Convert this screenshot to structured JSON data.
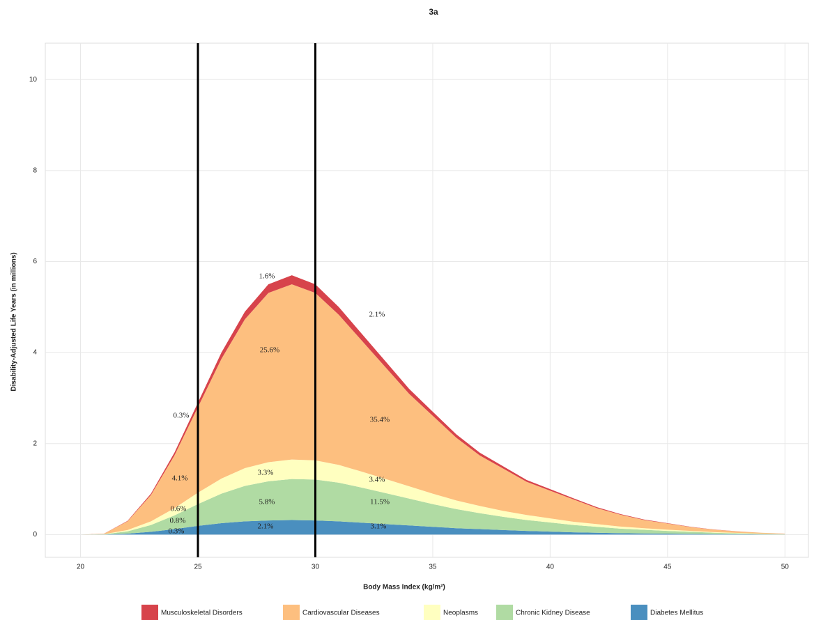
{
  "chart_data": {
    "type": "area",
    "stacked": true,
    "title": "3a",
    "x_label": "Body Mass Index (kg/m²)",
    "y_label": "Disability-Adjusted Life Years (in millions)",
    "x": [
      20,
      21,
      22,
      23,
      24,
      25,
      26,
      27,
      28,
      29,
      30,
      31,
      32,
      33,
      34,
      35,
      36,
      37,
      38,
      39,
      40,
      41,
      42,
      43,
      44,
      45,
      46,
      47,
      48,
      49,
      50
    ],
    "series": [
      {
        "name": "Musculoskeletal Disorders",
        "color": "#d7434b",
        "values": [
          0,
          0.001,
          0.01,
          0.03,
          0.06,
          0.1,
          0.14,
          0.17,
          0.19,
          0.2,
          0.19,
          0.17,
          0.15,
          0.13,
          0.11,
          0.09,
          0.075,
          0.06,
          0.05,
          0.04,
          0.033,
          0.026,
          0.02,
          0.015,
          0.011,
          0.008,
          0.006,
          0.004,
          0.0025,
          0.0015,
          0.0008
        ]
      },
      {
        "name": "Cardiovascular Diseases",
        "color": "#fdbf7f",
        "values": [
          0,
          0.01,
          0.19,
          0.58,
          1.16,
          1.88,
          2.63,
          3.27,
          3.72,
          3.85,
          3.68,
          3.3,
          2.87,
          2.45,
          2.03,
          1.71,
          1.38,
          1.11,
          0.93,
          0.73,
          0.61,
          0.49,
          0.35,
          0.26,
          0.18,
          0.135,
          0.084,
          0.052,
          0.032,
          0.018,
          0.008
        ]
      },
      {
        "name": "Neoplasms",
        "color": "#ffffc0",
        "values": [
          0,
          0.002,
          0.03,
          0.08,
          0.16,
          0.25,
          0.33,
          0.39,
          0.42,
          0.43,
          0.42,
          0.39,
          0.35,
          0.31,
          0.27,
          0.23,
          0.19,
          0.16,
          0.13,
          0.11,
          0.09,
          0.07,
          0.06,
          0.045,
          0.035,
          0.027,
          0.02,
          0.014,
          0.009,
          0.005,
          0.003
        ]
      },
      {
        "name": "Chronic Kidney Disease",
        "color": "#b0dba3",
        "values": [
          0,
          0.005,
          0.05,
          0.15,
          0.3,
          0.48,
          0.65,
          0.78,
          0.86,
          0.9,
          0.9,
          0.85,
          0.77,
          0.68,
          0.59,
          0.5,
          0.42,
          0.35,
          0.29,
          0.24,
          0.2,
          0.16,
          0.13,
          0.1,
          0.08,
          0.06,
          0.045,
          0.03,
          0.02,
          0.012,
          0.006
        ]
      },
      {
        "name": "Diabetes Mellitus",
        "color": "#4a8fbf",
        "values": [
          0,
          0.002,
          0.02,
          0.06,
          0.12,
          0.19,
          0.25,
          0.29,
          0.31,
          0.32,
          0.31,
          0.29,
          0.26,
          0.23,
          0.2,
          0.17,
          0.14,
          0.12,
          0.1,
          0.08,
          0.065,
          0.05,
          0.04,
          0.03,
          0.025,
          0.02,
          0.015,
          0.01,
          0.007,
          0.004,
          0.002
        ]
      }
    ],
    "xlim": [
      18.5,
      51
    ],
    "ylim": [
      -0.5,
      10.8
    ],
    "xticks": [
      20,
      25,
      30,
      35,
      40,
      45,
      50
    ],
    "yticks": [
      0,
      2,
      4,
      6,
      8,
      10
    ],
    "grid": true,
    "legend": "bottom",
    "vlines": [
      25,
      30
    ],
    "vline_color": "#000000",
    "annotations": [
      "1.6%",
      "2.1%",
      "25.6%",
      "0.3%",
      "35.4%",
      "4.1%",
      "3.3%",
      "3.4%",
      "0.6%",
      "5.8%",
      "11.5%",
      "0.8%",
      "2.1%",
      "3.1%",
      "0.3%"
    ]
  }
}
